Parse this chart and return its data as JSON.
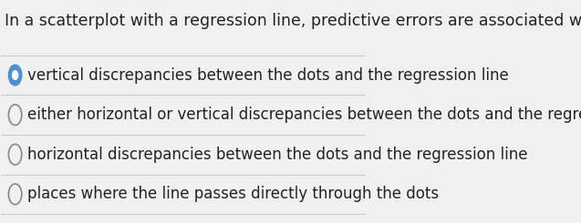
{
  "question": "In a scatterplot with a regression line, predictive errors are associated with:",
  "options": [
    "vertical discrepancies between the dots and the regression line",
    "either horizontal or vertical discrepancies between the dots and the regression line",
    "horizontal discrepancies between the dots and the regression line",
    "places where the line passes directly through the dots"
  ],
  "selected_index": 0,
  "background_color": "#f0f0f0",
  "question_fontsize": 12.5,
  "option_fontsize": 12.0,
  "text_color": "#222222",
  "divider_color": "#cccccc",
  "selected_color": "#4a90d9",
  "unselected_color": "#888888"
}
